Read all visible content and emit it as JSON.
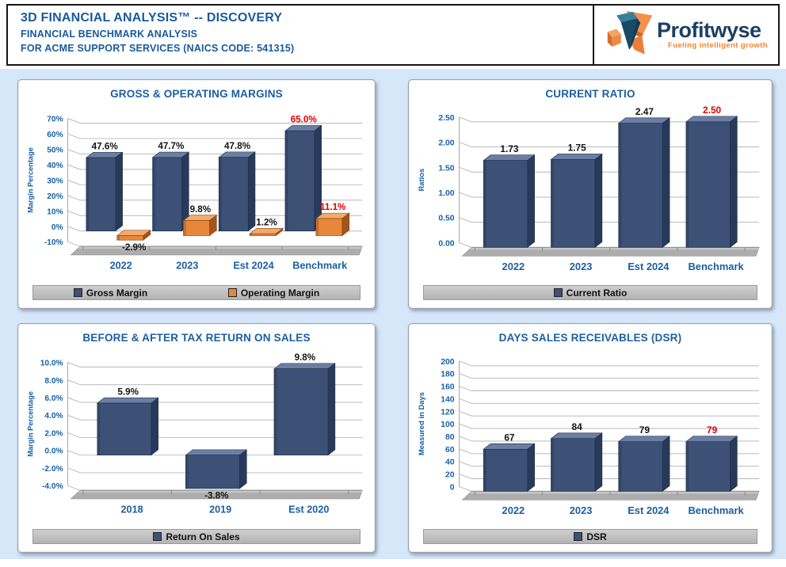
{
  "header": {
    "title": "3D FINANCIAL ANALYSIS™ -- DISCOVERY",
    "subtitle1": "FINANCIAL BENCHMARK ANALYSIS",
    "subtitle2": "FOR ACME SUPPORT SERVICES (NAICS CODE: 541315)",
    "logo": {
      "name": "Profitwyse",
      "tagline": "Fueling intelligent growth"
    }
  },
  "colors": {
    "accent_blue": "#1b5fa3",
    "tick_blue": "#1660a7",
    "bar_blue": "#3d5176",
    "bar_orange": "#e8873b",
    "benchmark_red": "#e00000",
    "label_black": "#141414",
    "page_bg": "#d5e7f9"
  },
  "chart_data": [
    {
      "type": "bar",
      "title": "GROSS & OPERATING MARGINS",
      "ylabel": "Margin Percentage",
      "categories": [
        "2022",
        "2023",
        "Est 2024",
        "Benchmark"
      ],
      "ylim": [
        -10,
        70
      ],
      "grid": true,
      "legend_position": "bottom",
      "yticks": [
        {
          "v": 70,
          "label": "70%"
        },
        {
          "v": 60,
          "label": "60%"
        },
        {
          "v": 50,
          "label": "50%"
        },
        {
          "v": 40,
          "label": "40%"
        },
        {
          "v": 30,
          "label": "30%"
        },
        {
          "v": 20,
          "label": "20%"
        },
        {
          "v": 10,
          "label": "10%"
        },
        {
          "v": 0,
          "label": "0%"
        },
        {
          "v": -10,
          "label": "-10%"
        }
      ],
      "series": [
        {
          "name": "Gross Margin",
          "color": "blue",
          "values": [
            47.6,
            47.7,
            47.8,
            65.0
          ],
          "labels": [
            "47.6%",
            "47.7%",
            "47.8%",
            "65.0%"
          ],
          "label_colors": [
            "black",
            "black",
            "black",
            "red"
          ]
        },
        {
          "name": "Operating Margin",
          "color": "orange",
          "values": [
            -2.9,
            9.8,
            1.2,
            11.1
          ],
          "labels": [
            "-2.9%",
            "9.8%",
            "1.2%",
            "11.1%"
          ],
          "label_colors": [
            "black",
            "black",
            "black",
            "red"
          ]
        }
      ]
    },
    {
      "type": "bar",
      "title": "CURRENT RATIO",
      "ylabel": "Ratios",
      "categories": [
        "2022",
        "2023",
        "Est 2024",
        "Benchmark"
      ],
      "ylim": [
        0,
        2.5
      ],
      "grid": true,
      "legend_position": "bottom",
      "yticks": [
        {
          "v": 2.5,
          "label": "2.50"
        },
        {
          "v": 2.0,
          "label": "2.00"
        },
        {
          "v": 1.5,
          "label": "1.50"
        },
        {
          "v": 1.0,
          "label": "1.00"
        },
        {
          "v": 0.5,
          "label": "0.50"
        },
        {
          "v": 0.0,
          "label": "0.00"
        }
      ],
      "series": [
        {
          "name": "Current Ratio",
          "color": "blue",
          "values": [
            1.73,
            1.75,
            2.47,
            2.5
          ],
          "labels": [
            "1.73",
            "1.75",
            "2.47",
            "2.50"
          ],
          "label_colors": [
            "black",
            "black",
            "black",
            "red"
          ]
        }
      ]
    },
    {
      "type": "bar",
      "title": "BEFORE & AFTER TAX RETURN ON SALES",
      "ylabel": "Margin Percentage",
      "categories": [
        "2018",
        "2019",
        "Est 2020"
      ],
      "ylim": [
        -4,
        10
      ],
      "grid": true,
      "legend_position": "bottom",
      "yticks": [
        {
          "v": 10,
          "label": "10.0%"
        },
        {
          "v": 8,
          "label": "8.0%"
        },
        {
          "v": 6,
          "label": "6.0%"
        },
        {
          "v": 4,
          "label": "4.0%"
        },
        {
          "v": 2,
          "label": "2.0%"
        },
        {
          "v": 0,
          "label": "0.0%"
        },
        {
          "v": -2,
          "label": "-2.0%"
        },
        {
          "v": -4,
          "label": "-4.0%"
        }
      ],
      "series": [
        {
          "name": "Return On Sales",
          "color": "blue",
          "values": [
            5.9,
            -3.8,
            9.8
          ],
          "labels": [
            "5.9%",
            "-3.8%",
            "9.8%"
          ],
          "label_colors": [
            "black",
            "black",
            "black"
          ]
        }
      ]
    },
    {
      "type": "bar",
      "title": "DAYS SALES RECEIVABLES (DSR)",
      "ylabel": "Measured in Days",
      "categories": [
        "2022",
        "2023",
        "Est 2024",
        "Benchmark"
      ],
      "ylim": [
        0,
        200
      ],
      "grid": true,
      "legend_position": "bottom",
      "yticks": [
        {
          "v": 200,
          "label": "200"
        },
        {
          "v": 180,
          "label": "180"
        },
        {
          "v": 160,
          "label": "160"
        },
        {
          "v": 140,
          "label": "140"
        },
        {
          "v": 120,
          "label": "120"
        },
        {
          "v": 100,
          "label": "100"
        },
        {
          "v": 80,
          "label": "80"
        },
        {
          "v": 60,
          "label": "60"
        },
        {
          "v": 40,
          "label": "40"
        },
        {
          "v": 20,
          "label": "20"
        },
        {
          "v": 0,
          "label": "0"
        }
      ],
      "series": [
        {
          "name": "DSR",
          "color": "blue",
          "values": [
            67,
            84,
            79,
            79
          ],
          "labels": [
            "67",
            "84",
            "79",
            "79"
          ],
          "label_colors": [
            "black",
            "black",
            "black",
            "red"
          ]
        }
      ]
    }
  ]
}
